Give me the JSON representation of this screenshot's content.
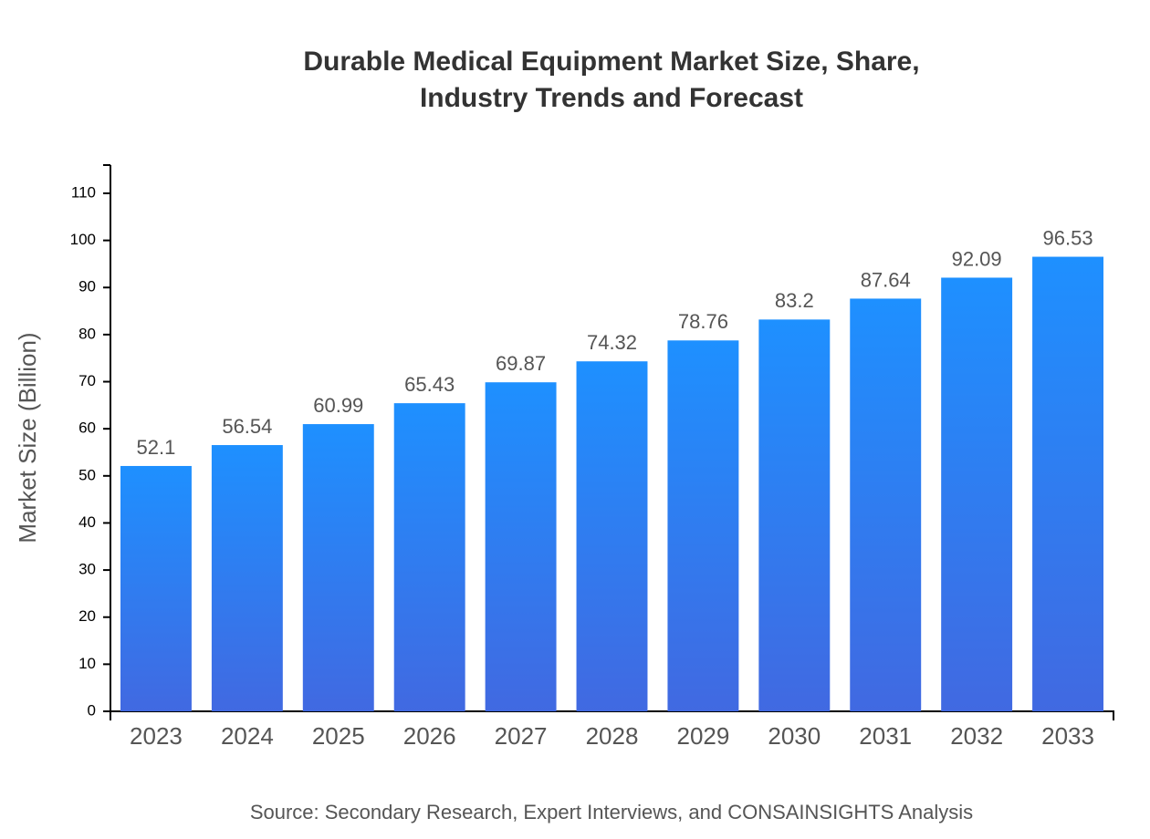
{
  "chart_data": {
    "type": "bar",
    "title": "Durable Medical Equipment Market Size, Share, Industry Trends and Forecast",
    "y_label": "Market Size (Billion)",
    "source": "Source: Secondary Research, Expert Interviews, and CONSAINSIGHTS Analysis",
    "categories": [
      "2023",
      "2024",
      "2025",
      "2026",
      "2027",
      "2028",
      "2029",
      "2030",
      "2031",
      "2032",
      "2033"
    ],
    "values": [
      52.1,
      56.54,
      60.99,
      65.43,
      69.87,
      74.32,
      78.76,
      83.2,
      87.64,
      92.09,
      96.53
    ],
    "color": [
      "#1e90ff",
      "#4169e1"
    ],
    "ylim": [
      0,
      116
    ],
    "yticks": [
      0,
      10,
      20,
      30,
      40,
      50,
      60,
      70,
      80,
      90,
      100,
      110
    ],
    "grid": false
  }
}
